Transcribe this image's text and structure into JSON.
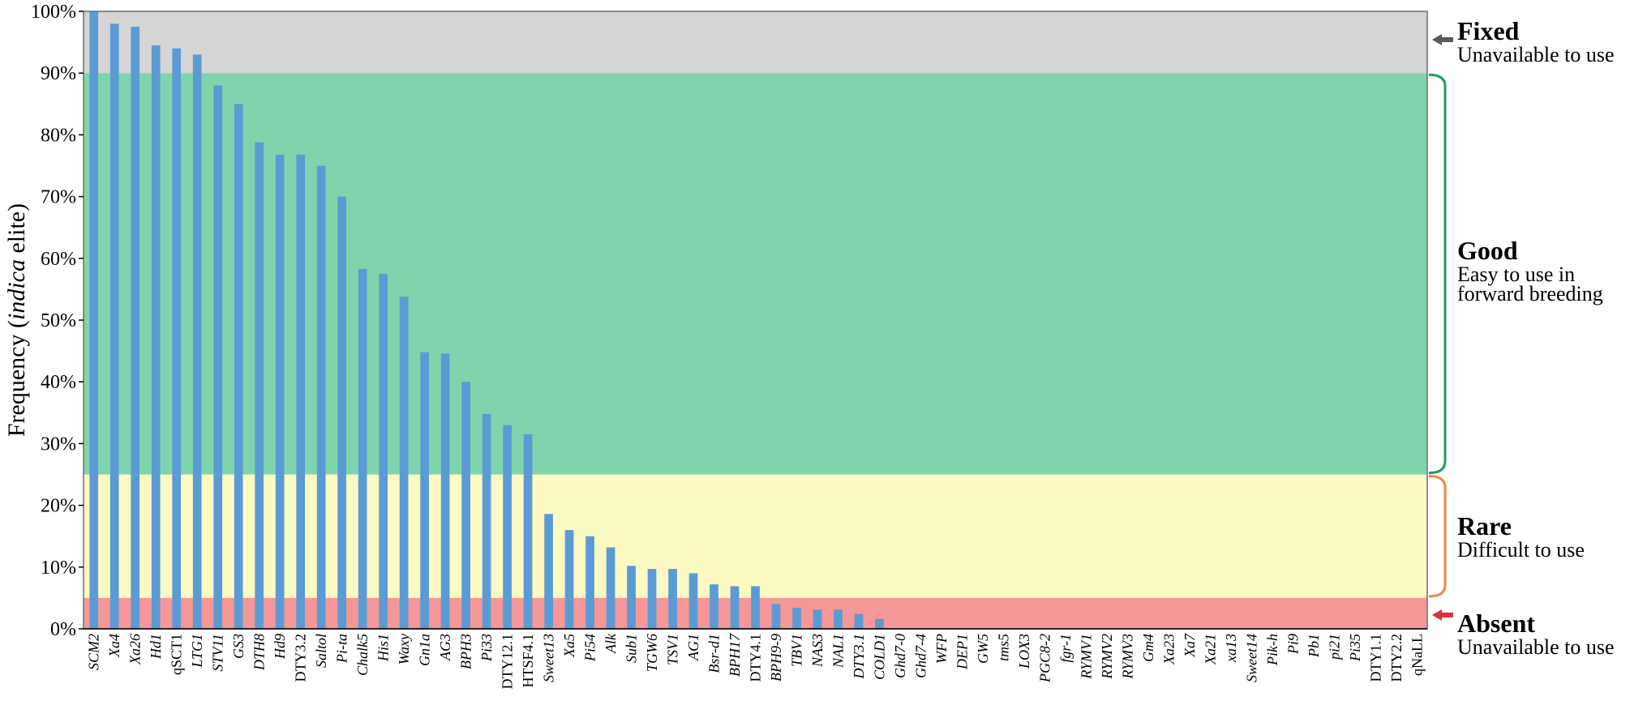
{
  "chart_data": {
    "type": "bar",
    "ylabel_prefix": "Frequency (",
    "ylabel_italic": "indica",
    "ylabel_suffix": " elite)",
    "xlabel": "",
    "ylim": [
      0,
      100
    ],
    "yticks": [
      0,
      10,
      20,
      30,
      40,
      50,
      60,
      70,
      80,
      90,
      100
    ],
    "ytick_suffix": "%",
    "grid": false,
    "bar_color": "#5b9bd5",
    "categories": [
      {
        "label": "SCM2",
        "italic": true,
        "value": 100
      },
      {
        "label": "Xa4",
        "italic": true,
        "value": 98
      },
      {
        "label": "Xa26",
        "italic": true,
        "value": 97.5
      },
      {
        "label": "Hd1",
        "italic": true,
        "value": 94.5
      },
      {
        "label": "qSCT1",
        "italic": false,
        "value": 94
      },
      {
        "label": "LTG1",
        "italic": true,
        "value": 93
      },
      {
        "label": "STV11",
        "italic": true,
        "value": 88
      },
      {
        "label": "GS3",
        "italic": true,
        "value": 85
      },
      {
        "label": "DTH8",
        "italic": true,
        "value": 78.8
      },
      {
        "label": "Hd9",
        "italic": true,
        "value": 76.8
      },
      {
        "label": "DTY3.2",
        "italic": false,
        "value": 76.8
      },
      {
        "label": "Saltol",
        "italic": true,
        "value": 75
      },
      {
        "label": "Pi-ta",
        "italic": true,
        "value": 70
      },
      {
        "label": "Chalk5",
        "italic": true,
        "value": 58.3
      },
      {
        "label": "His1",
        "italic": true,
        "value": 57.5
      },
      {
        "label": "Waxy",
        "italic": true,
        "value": 53.8
      },
      {
        "label": "Gn1a",
        "italic": true,
        "value": 44.8
      },
      {
        "label": "AG3",
        "italic": true,
        "value": 44.6
      },
      {
        "label": "BPH3",
        "italic": true,
        "value": 40
      },
      {
        "label": "Pi33",
        "italic": true,
        "value": 34.8
      },
      {
        "label": "DTY12.1",
        "italic": false,
        "value": 33
      },
      {
        "label": "HTSF4.1",
        "italic": false,
        "value": 31.5
      },
      {
        "label": "Sweet13",
        "italic": true,
        "value": 18.6
      },
      {
        "label": "Xa5",
        "italic": true,
        "value": 16
      },
      {
        "label": "Pi54",
        "italic": true,
        "value": 15
      },
      {
        "label": "Alk",
        "italic": true,
        "value": 13.2
      },
      {
        "label": "Sub1",
        "italic": true,
        "value": 10.2
      },
      {
        "label": "TGW6",
        "italic": true,
        "value": 9.7
      },
      {
        "label": "TSV1",
        "italic": true,
        "value": 9.7
      },
      {
        "label": "AG1",
        "italic": true,
        "value": 9
      },
      {
        "label": "Bsr-d1",
        "italic": true,
        "value": 7.2
      },
      {
        "label": "BPH17",
        "italic": true,
        "value": 6.9
      },
      {
        "label": "DTY4.1",
        "italic": false,
        "value": 6.9
      },
      {
        "label": "BPH9-9",
        "italic": true,
        "value": 4
      },
      {
        "label": "TBV1",
        "italic": true,
        "value": 3.4
      },
      {
        "label": "NAS3",
        "italic": true,
        "value": 3.1
      },
      {
        "label": "NAL1",
        "italic": true,
        "value": 3.1
      },
      {
        "label": "DTY3.1",
        "italic": true,
        "value": 2.4
      },
      {
        "label": "COLD1",
        "italic": true,
        "value": 1.6
      },
      {
        "label": "Ghd7-0",
        "italic": true,
        "value": 0
      },
      {
        "label": "Ghd7-4",
        "italic": true,
        "value": 0
      },
      {
        "label": "WFP",
        "italic": true,
        "value": 0
      },
      {
        "label": "DEP1",
        "italic": true,
        "value": 0
      },
      {
        "label": "GW5",
        "italic": true,
        "value": 0
      },
      {
        "label": "tms5",
        "italic": true,
        "value": 0
      },
      {
        "label": "LOX3",
        "italic": true,
        "value": 0
      },
      {
        "label": "PGC8-2",
        "italic": true,
        "value": 0
      },
      {
        "label": "fgr-1",
        "italic": true,
        "value": 0
      },
      {
        "label": "RYMV1",
        "italic": true,
        "value": 0
      },
      {
        "label": "RYMV2",
        "italic": true,
        "value": 0
      },
      {
        "label": "RYMV3",
        "italic": true,
        "value": 0
      },
      {
        "label": "Gm4",
        "italic": true,
        "value": 0
      },
      {
        "label": "Xa23",
        "italic": true,
        "value": 0
      },
      {
        "label": "Xa7",
        "italic": true,
        "value": 0
      },
      {
        "label": "Xa21",
        "italic": true,
        "value": 0
      },
      {
        "label": "xa13",
        "italic": true,
        "value": 0
      },
      {
        "label": "Sweet14",
        "italic": true,
        "value": 0
      },
      {
        "label": "Pik-h",
        "italic": true,
        "value": 0
      },
      {
        "label": "Pi9",
        "italic": true,
        "value": 0
      },
      {
        "label": "Pb1",
        "italic": true,
        "value": 0
      },
      {
        "label": "pi21",
        "italic": true,
        "value": 0
      },
      {
        "label": "Pi35",
        "italic": true,
        "value": 0
      },
      {
        "label": "DTY1.1",
        "italic": false,
        "value": 0
      },
      {
        "label": "DTY2.2",
        "italic": false,
        "value": 0
      },
      {
        "label": "qNaLL",
        "italic": false,
        "value": 0
      }
    ],
    "zones": [
      {
        "key": "fixed",
        "title": "Fixed",
        "desc": [
          "Unavailable to use"
        ],
        "range": [
          90,
          100
        ],
        "fill": "#d5d5d5",
        "marker": "arrow",
        "marker_color": "#595959"
      },
      {
        "key": "good",
        "title": "Good",
        "desc": [
          "Easy to use in",
          "forward breeding"
        ],
        "range": [
          25,
          90
        ],
        "fill": "#80d4ac",
        "marker": "bracket",
        "marker_color": "#1e9e5a"
      },
      {
        "key": "rare",
        "title": "Rare",
        "desc": [
          "Difficult to use"
        ],
        "range": [
          5,
          25
        ],
        "fill": "#fdf9c3",
        "marker": "bracket",
        "marker_color": "#f0883a"
      },
      {
        "key": "absent",
        "title": "Absent",
        "desc": [
          "Unavailable to use"
        ],
        "range": [
          0,
          5
        ],
        "fill": "#f59797",
        "marker": "arrow",
        "marker_color": "#e0303a"
      }
    ]
  }
}
